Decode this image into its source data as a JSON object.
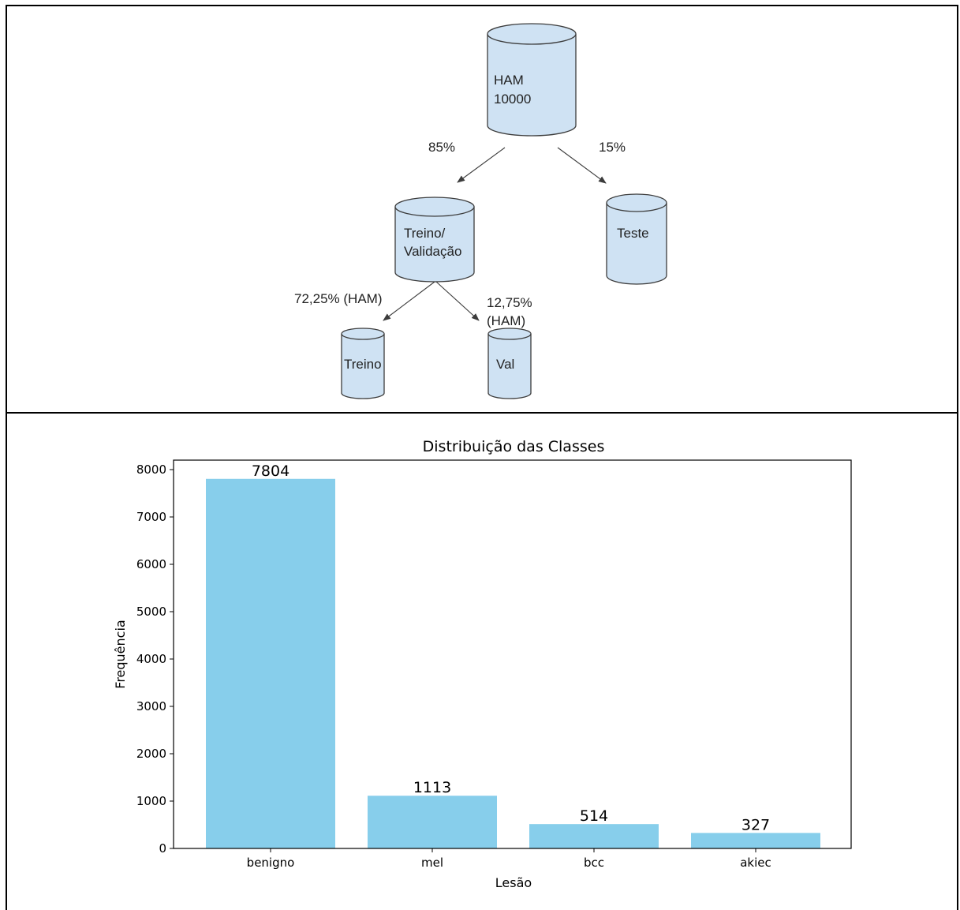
{
  "diagram": {
    "nodes": {
      "ham_line1": "HAM",
      "ham_line2": "10000",
      "trainval_line1": "Treino/",
      "trainval_line2": "Validação",
      "test": "Teste",
      "train": "Treino",
      "val": "Val"
    },
    "edges": {
      "left_pct": "85%",
      "right_pct": "15%",
      "train_pct": "72,25% (HAM)",
      "val_pct_line1": "12,75%",
      "val_pct_line2": "(HAM)"
    },
    "colors": {
      "cylinder_fill": "#cfe2f3",
      "stroke": "#3c3c3c"
    }
  },
  "chart_data": {
    "type": "bar",
    "title": "Distribuição das Classes",
    "xlabel": "Lesão",
    "ylabel": "Frequência",
    "categories": [
      "benigno",
      "mel",
      "bcc",
      "akiec"
    ],
    "values": [
      7804,
      1113,
      514,
      327
    ],
    "ylim": [
      0,
      8200
    ],
    "yticks": [
      0,
      1000,
      2000,
      3000,
      4000,
      5000,
      6000,
      7000,
      8000
    ],
    "grid": false,
    "bar_color": "#87ceeb"
  }
}
